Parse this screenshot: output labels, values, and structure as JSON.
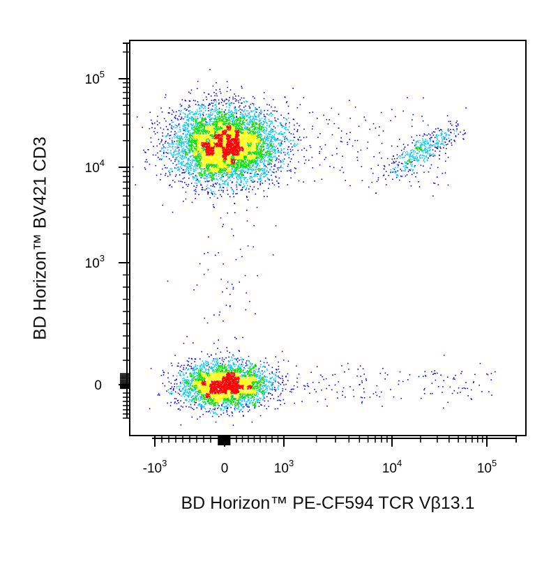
{
  "chart_data": {
    "type": "scatter",
    "plot_style": "flow cytometry dot plot, density-colored (blue -> cyan -> green -> yellow -> red)",
    "xlabel": "BD Horizon™ PE-CF594 TCR Vβ13.1",
    "ylabel": "BD Horizon™ BV421 CD3",
    "x_axis": {
      "scale": "biexponential",
      "ticks": [
        {
          "value": -1000,
          "base": "-10",
          "exp": "3"
        },
        {
          "value": 0,
          "base": "0",
          "exp": ""
        },
        {
          "value": 1000,
          "base": "10",
          "exp": "3"
        },
        {
          "value": 10000,
          "base": "10",
          "exp": "4"
        },
        {
          "value": 100000,
          "base": "10",
          "exp": "5"
        }
      ],
      "range": [
        -1500,
        200000
      ]
    },
    "y_axis": {
      "scale": "biexponential",
      "ticks": [
        {
          "value": 0,
          "base": "0",
          "exp": ""
        },
        {
          "value": 1000,
          "base": "10",
          "exp": "3"
        },
        {
          "value": 10000,
          "base": "10",
          "exp": "4"
        },
        {
          "value": 100000,
          "base": "10",
          "exp": "5"
        }
      ],
      "range": [
        -700,
        250000
      ]
    },
    "density_colors": [
      "#0000ff",
      "#00c8ff",
      "#00e000",
      "#ffff00",
      "#ff0000"
    ],
    "populations": [
      {
        "description": "CD3+ TCR Vb13.1- (main)",
        "x_center": 0,
        "y_center": 18000,
        "approx_events": 6000
      },
      {
        "description": "CD3+ TCR Vb13.1+",
        "x_center": 20000,
        "y_center": 15000,
        "approx_events": 400
      },
      {
        "description": "CD3- double negative",
        "x_center": 0,
        "y_center": 0,
        "approx_events": 3500
      }
    ],
    "grid": false,
    "legend": "none"
  }
}
